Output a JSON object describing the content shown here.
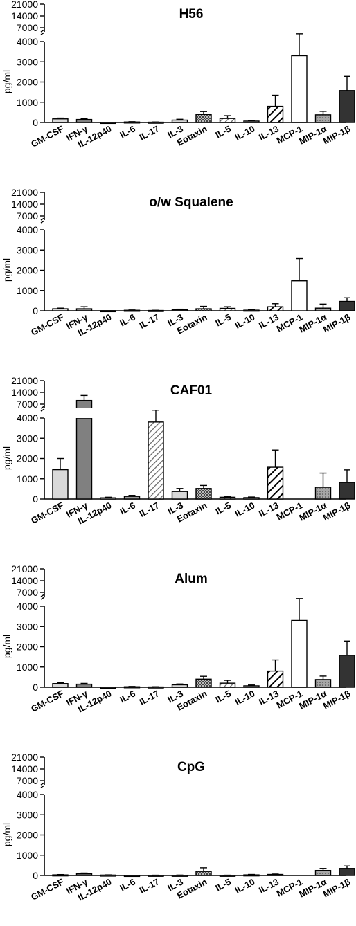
{
  "chart_data": [
    {
      "type": "bar",
      "title": "H56",
      "ylabel": "pg/ml",
      "categories": [
        "GM-CSF",
        "IFN-γ",
        "IL-12p40",
        "IL-6",
        "IL-17",
        "IL-3",
        "Eotaxin",
        "IL-5",
        "IL-10",
        "IL-13",
        "MCP-1",
        "MIP-1α",
        "MIP-1β"
      ],
      "values": [
        180,
        150,
        5,
        25,
        15,
        120,
        400,
        200,
        70,
        800,
        3300,
        380,
        1580
      ],
      "errors": [
        40,
        40,
        0,
        15,
        10,
        40,
        140,
        140,
        40,
        550,
        750,
        170,
        700
      ],
      "lower_ticks": [
        0,
        1000,
        2000,
        3000,
        4000
      ],
      "upper_ticks": [
        7000,
        14000,
        21000
      ]
    },
    {
      "type": "bar",
      "title": "o/w Squalene",
      "ylabel": "pg/ml",
      "categories": [
        "GM-CSF",
        "IFN-γ",
        "IL-12p40",
        "IL-6",
        "IL-17",
        "IL-3",
        "Eotaxin",
        "IL-5",
        "IL-10",
        "IL-13",
        "MCP-1",
        "MIP-1α",
        "MIP-1β"
      ],
      "values": [
        100,
        100,
        5,
        25,
        15,
        50,
        100,
        120,
        30,
        200,
        1480,
        130,
        460
      ],
      "errors": [
        30,
        100,
        0,
        15,
        10,
        30,
        120,
        80,
        20,
        150,
        1100,
        200,
        180
      ],
      "lower_ticks": [
        0,
        1000,
        2000,
        3000,
        4000
      ],
      "upper_ticks": [
        7000,
        14000,
        21000
      ]
    },
    {
      "type": "bar",
      "title": "CAF01",
      "ylabel": "pg/ml",
      "categories": [
        "GM-CSF",
        "IFN-γ",
        "IL-12p40",
        "IL-6",
        "IL-17",
        "IL-3",
        "Eotaxin",
        "IL-5",
        "IL-10",
        "IL-13",
        "MCP-1",
        "MIP-1α",
        "MIP-1β"
      ],
      "values": [
        1450,
        9200,
        60,
        130,
        3800,
        370,
        520,
        90,
        70,
        1570,
        0,
        580,
        820
      ],
      "errors": [
        550,
        3000,
        30,
        50,
        300,
        150,
        150,
        40,
        30,
        850,
        0,
        700,
        620
      ],
      "lower_ticks": [
        0,
        1000,
        2000,
        3000,
        4000
      ],
      "upper_ticks": [
        7000,
        14000,
        21000
      ]
    },
    {
      "type": "bar",
      "title": "Alum",
      "ylabel": "pg/ml",
      "categories": [
        "GM-CSF",
        "IFN-γ",
        "IL-12p40",
        "IL-6",
        "IL-17",
        "IL-3",
        "Eotaxin",
        "IL-5",
        "IL-10",
        "IL-13",
        "MCP-1",
        "MIP-1α",
        "MIP-1β"
      ],
      "values": [
        180,
        150,
        5,
        25,
        15,
        120,
        400,
        200,
        70,
        800,
        3300,
        380,
        1580
      ],
      "errors": [
        40,
        40,
        0,
        15,
        10,
        40,
        140,
        140,
        40,
        550,
        750,
        170,
        700
      ],
      "lower_ticks": [
        0,
        1000,
        2000,
        3000,
        4000
      ],
      "upper_ticks": [
        7000,
        14000,
        21000
      ]
    },
    {
      "type": "bar",
      "title": "CpG",
      "ylabel": "pg/ml",
      "categories": [
        "GM-CSF",
        "IFN-γ",
        "IL-12p40",
        "IL-6",
        "IL-17",
        "IL-3",
        "Eotaxin",
        "IL-5",
        "IL-10",
        "IL-13",
        "MCP-1",
        "MIP-1α",
        "MIP-1β"
      ],
      "values": [
        30,
        80,
        20,
        5,
        10,
        10,
        200,
        10,
        30,
        50,
        0,
        250,
        350
      ],
      "errors": [
        15,
        40,
        10,
        0,
        5,
        10,
        180,
        5,
        20,
        20,
        0,
        100,
        120
      ],
      "lower_ticks": [
        0,
        1000,
        2000,
        3000,
        4000
      ],
      "upper_ticks": [
        7000,
        14000,
        21000
      ]
    }
  ],
  "bar_styles": [
    {
      "fill": "#d9d9d9",
      "pattern": "none"
    },
    {
      "fill": "#808080",
      "pattern": "none"
    },
    {
      "fill": "#ffffff",
      "pattern": "none"
    },
    {
      "fill": "#9a9a9a",
      "pattern": "none"
    },
    {
      "fill": "#ffffff",
      "pattern": "hatch-light"
    },
    {
      "fill": "#d9d9d9",
      "pattern": "none"
    },
    {
      "fill": "#ffffff",
      "pattern": "checker"
    },
    {
      "fill": "#ffffff",
      "pattern": "hatch-light"
    },
    {
      "fill": "#b0b0b0",
      "pattern": "none"
    },
    {
      "fill": "#ffffff",
      "pattern": "hatch-heavy"
    },
    {
      "fill": "#ffffff",
      "pattern": "none"
    },
    {
      "fill": "#a6a6a6",
      "pattern": "dots"
    },
    {
      "fill": "#333333",
      "pattern": "none"
    }
  ]
}
